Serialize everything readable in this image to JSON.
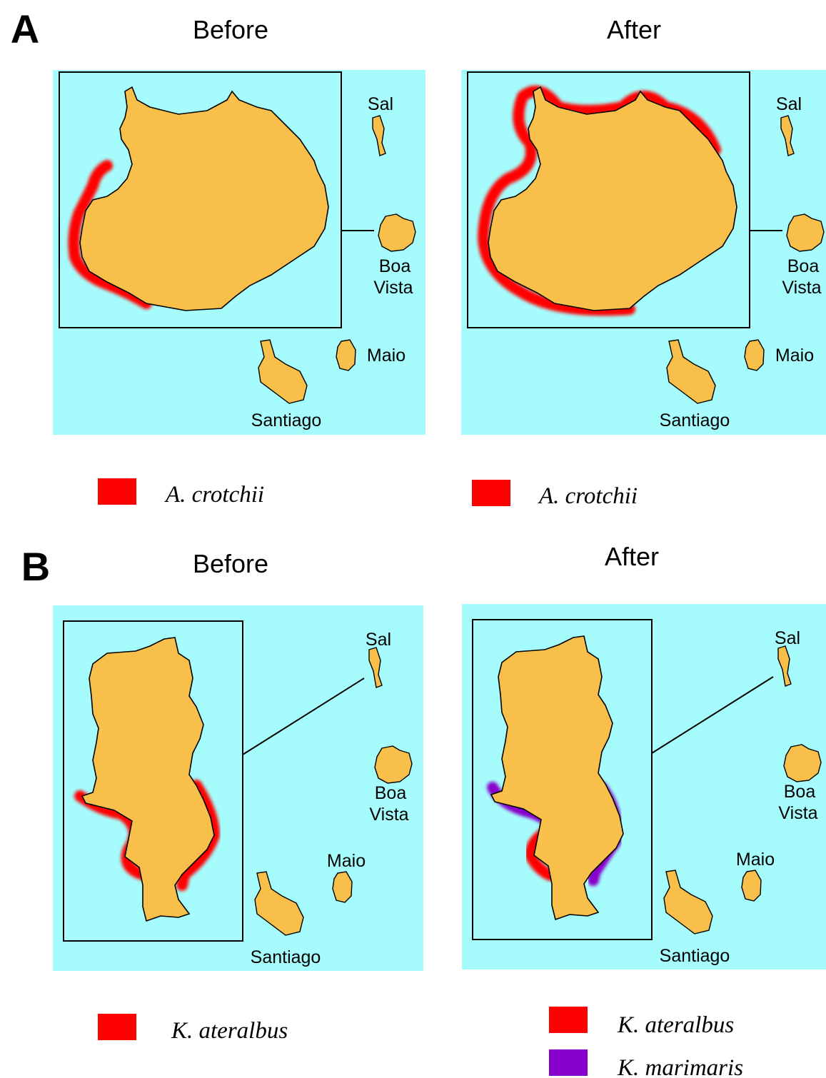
{
  "figure": {
    "sections": [
      {
        "letter": "A",
        "panels": [
          {
            "heading": "Before",
            "labels": {
              "sal": "Sal",
              "boa_vista": [
                "Boa",
                "Vista"
              ],
              "maio": "Maio",
              "santiago": "Santiago"
            },
            "legend": [
              {
                "name": "A. crotchii",
                "color": "#ff0000"
              }
            ]
          },
          {
            "heading": "After",
            "labels": {
              "sal": "Sal",
              "boa_vista": [
                "Boa",
                "Vista"
              ],
              "maio": "Maio",
              "santiago": "Santiago"
            },
            "legend": [
              {
                "name": "A. crotchii",
                "color": "#ff0000"
              }
            ]
          }
        ]
      },
      {
        "letter": "B",
        "panels": [
          {
            "heading": "Before",
            "labels": {
              "sal": "Sal",
              "boa_vista": [
                "Boa",
                "Vista"
              ],
              "maio": "Maio",
              "santiago": "Santiago"
            },
            "legend": [
              {
                "name": "K. ateralbus",
                "color": "#ff0000"
              }
            ]
          },
          {
            "heading": "After",
            "labels": {
              "sal": "Sal",
              "boa_vista": [
                "Boa",
                "Vista"
              ],
              "maio": "Maio",
              "santiago": "Santiago"
            },
            "legend": [
              {
                "name": "K. ateralbus",
                "color": "#ff0000"
              },
              {
                "name": "K. marimaris",
                "color": "#8800cc"
              }
            ]
          }
        ]
      }
    ]
  }
}
